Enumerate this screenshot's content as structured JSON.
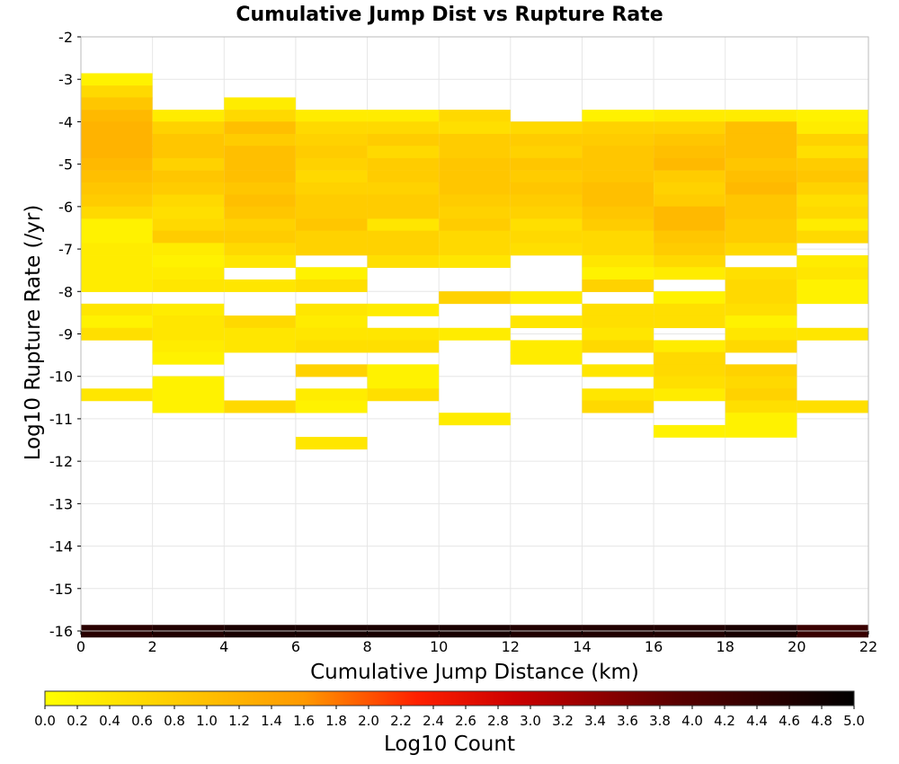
{
  "chart_data": {
    "type": "heatmap",
    "title": "Cumulative Jump Dist vs Rupture Rate",
    "xlabel": "Cumulative Jump Distance (km)",
    "ylabel": "Log10 Rupture Rate (/yr)",
    "xlim": [
      0,
      22
    ],
    "ylim": [
      -16,
      -2
    ],
    "x_ticks": [
      "0",
      "2",
      "4",
      "6",
      "8",
      "10",
      "12",
      "14",
      "16",
      "18",
      "20",
      "22"
    ],
    "y_ticks": [
      "-2",
      "-3",
      "-4",
      "-5",
      "-6",
      "-7",
      "-8",
      "-9",
      "-10",
      "-11",
      "-12",
      "-13",
      "-14",
      "-15",
      "-16"
    ],
    "x_bin_width": 2,
    "y_bin_height": 0.2857,
    "colorbar": {
      "label": "Log10 Count",
      "range": [
        0,
        5
      ],
      "ticks": [
        "0.0",
        "0.2",
        "0.4",
        "0.6",
        "0.8",
        "1.0",
        "1.2",
        "1.4",
        "1.6",
        "1.8",
        "2.0",
        "2.2",
        "2.4",
        "2.6",
        "2.8",
        "3.0",
        "3.2",
        "3.4",
        "3.6",
        "3.8",
        "4.0",
        "4.2",
        "4.4",
        "4.6",
        "4.8",
        "5.0"
      ],
      "colormap": "yellow-orange-red-black"
    },
    "grid": true,
    "columns": [
      {
        "x_start": 0,
        "cells": [
          [
            -3.0,
            0.2
          ],
          [
            -3.29,
            0.6
          ],
          [
            -3.57,
            0.9
          ],
          [
            -3.86,
            1.1
          ],
          [
            -4.14,
            1.2
          ],
          [
            -4.43,
            1.2
          ],
          [
            -4.71,
            1.2
          ],
          [
            -5.0,
            1.1
          ],
          [
            -5.29,
            1.0
          ],
          [
            -5.57,
            0.9
          ],
          [
            -5.86,
            0.8
          ],
          [
            -6.14,
            0.6
          ],
          [
            -6.43,
            0.2
          ],
          [
            -6.71,
            0.2
          ],
          [
            -7.0,
            0.3
          ],
          [
            -7.29,
            0.3
          ],
          [
            -7.57,
            0.3
          ],
          [
            -7.86,
            0.3
          ],
          [
            -8.43,
            0.4
          ],
          [
            -8.71,
            0.2
          ],
          [
            -9.0,
            0.5
          ],
          [
            -10.43,
            0.4
          ],
          [
            -16.0,
            4.5
          ]
        ]
      },
      {
        "x_start": 2,
        "cells": [
          [
            -3.86,
            0.3
          ],
          [
            -4.14,
            0.7
          ],
          [
            -4.43,
            0.9
          ],
          [
            -4.71,
            0.9
          ],
          [
            -5.0,
            0.7
          ],
          [
            -5.29,
            0.9
          ],
          [
            -5.57,
            0.8
          ],
          [
            -5.86,
            0.6
          ],
          [
            -6.14,
            0.5
          ],
          [
            -6.43,
            0.6
          ],
          [
            -6.71,
            0.8
          ],
          [
            -7.0,
            0.3
          ],
          [
            -7.29,
            0.2
          ],
          [
            -7.57,
            0.3
          ],
          [
            -7.86,
            0.4
          ],
          [
            -8.43,
            0.3
          ],
          [
            -8.71,
            0.4
          ],
          [
            -9.0,
            0.4
          ],
          [
            -9.29,
            0.3
          ],
          [
            -9.57,
            0.2
          ],
          [
            -10.14,
            0.2
          ],
          [
            -10.43,
            0.2
          ],
          [
            -10.71,
            0.2
          ],
          [
            -16.0,
            4.6
          ]
        ]
      },
      {
        "x_start": 4,
        "cells": [
          [
            -3.57,
            0.3
          ],
          [
            -3.86,
            0.6
          ],
          [
            -4.14,
            1.0
          ],
          [
            -4.43,
            0.8
          ],
          [
            -4.71,
            1.0
          ],
          [
            -5.0,
            1.0
          ],
          [
            -5.29,
            1.0
          ],
          [
            -5.57,
            0.9
          ],
          [
            -5.86,
            1.0
          ],
          [
            -6.14,
            0.9
          ],
          [
            -6.43,
            0.7
          ],
          [
            -6.71,
            0.8
          ],
          [
            -7.0,
            0.6
          ],
          [
            -7.29,
            0.4
          ],
          [
            -7.86,
            0.4
          ],
          [
            -8.71,
            0.6
          ],
          [
            -9.0,
            0.4
          ],
          [
            -9.29,
            0.4
          ],
          [
            -10.71,
            0.6
          ],
          [
            -16.0,
            4.7
          ]
        ]
      },
      {
        "x_start": 6,
        "cells": [
          [
            -3.86,
            0.3
          ],
          [
            -4.14,
            0.6
          ],
          [
            -4.43,
            0.7
          ],
          [
            -4.71,
            0.8
          ],
          [
            -5.0,
            0.7
          ],
          [
            -5.29,
            0.6
          ],
          [
            -5.57,
            0.7
          ],
          [
            -5.86,
            0.8
          ],
          [
            -6.14,
            0.8
          ],
          [
            -6.43,
            0.9
          ],
          [
            -6.71,
            0.7
          ],
          [
            -7.0,
            0.7
          ],
          [
            -7.57,
            0.2
          ],
          [
            -7.86,
            0.5
          ],
          [
            -8.43,
            0.4
          ],
          [
            -8.71,
            0.3
          ],
          [
            -9.0,
            0.4
          ],
          [
            -9.29,
            0.5
          ],
          [
            -9.86,
            0.7
          ],
          [
            -10.43,
            0.3
          ],
          [
            -10.71,
            0.2
          ],
          [
            -11.57,
            0.4
          ],
          [
            -16.0,
            4.7
          ]
        ]
      },
      {
        "x_start": 8,
        "cells": [
          [
            -3.86,
            0.3
          ],
          [
            -4.14,
            0.6
          ],
          [
            -4.43,
            0.8
          ],
          [
            -4.71,
            0.6
          ],
          [
            -5.0,
            0.8
          ],
          [
            -5.29,
            0.8
          ],
          [
            -5.57,
            0.7
          ],
          [
            -5.86,
            0.8
          ],
          [
            -6.14,
            0.8
          ],
          [
            -6.43,
            0.4
          ],
          [
            -6.71,
            0.7
          ],
          [
            -7.0,
            0.7
          ],
          [
            -7.29,
            0.5
          ],
          [
            -8.43,
            0.3
          ],
          [
            -9.0,
            0.4
          ],
          [
            -9.29,
            0.5
          ],
          [
            -9.86,
            0.2
          ],
          [
            -10.14,
            0.2
          ],
          [
            -10.43,
            0.5
          ],
          [
            -16.0,
            4.7
          ]
        ]
      },
      {
        "x_start": 10,
        "cells": [
          [
            -3.86,
            0.6
          ],
          [
            -4.14,
            0.5
          ],
          [
            -4.43,
            0.8
          ],
          [
            -4.71,
            0.8
          ],
          [
            -5.0,
            0.9
          ],
          [
            -5.29,
            0.9
          ],
          [
            -5.57,
            0.9
          ],
          [
            -5.86,
            0.8
          ],
          [
            -6.14,
            0.7
          ],
          [
            -6.43,
            0.8
          ],
          [
            -6.71,
            0.6
          ],
          [
            -7.0,
            0.6
          ],
          [
            -7.29,
            0.4
          ],
          [
            -8.14,
            0.7
          ],
          [
            -9.0,
            0.3
          ],
          [
            -11.0,
            0.3
          ],
          [
            -16.0,
            4.7
          ]
        ]
      },
      {
        "x_start": 12,
        "cells": [
          [
            -4.14,
            0.6
          ],
          [
            -4.43,
            0.8
          ],
          [
            -4.71,
            0.7
          ],
          [
            -5.0,
            0.9
          ],
          [
            -5.29,
            0.8
          ],
          [
            -5.57,
            0.9
          ],
          [
            -5.86,
            0.8
          ],
          [
            -6.14,
            0.7
          ],
          [
            -6.43,
            0.5
          ],
          [
            -6.71,
            0.6
          ],
          [
            -7.0,
            0.5
          ],
          [
            -8.14,
            0.3
          ],
          [
            -8.71,
            0.4
          ],
          [
            -9.29,
            0.3
          ],
          [
            -9.57,
            0.3
          ],
          [
            -16.0,
            4.6
          ]
        ]
      },
      {
        "x_start": 14,
        "cells": [
          [
            -3.86,
            0.2
          ],
          [
            -4.14,
            0.7
          ],
          [
            -4.43,
            0.8
          ],
          [
            -4.71,
            0.9
          ],
          [
            -5.0,
            0.9
          ],
          [
            -5.29,
            0.9
          ],
          [
            -5.57,
            1.0
          ],
          [
            -5.86,
            1.0
          ],
          [
            -6.14,
            0.9
          ],
          [
            -6.43,
            0.8
          ],
          [
            -6.71,
            0.6
          ],
          [
            -7.0,
            0.6
          ],
          [
            -7.29,
            0.4
          ],
          [
            -7.57,
            0.2
          ],
          [
            -7.86,
            0.7
          ],
          [
            -8.43,
            0.5
          ],
          [
            -8.71,
            0.5
          ],
          [
            -9.0,
            0.4
          ],
          [
            -9.29,
            0.6
          ],
          [
            -9.86,
            0.4
          ],
          [
            -10.43,
            0.4
          ],
          [
            -10.71,
            0.6
          ],
          [
            -16.0,
            4.6
          ]
        ]
      },
      {
        "x_start": 16,
        "cells": [
          [
            -3.86,
            0.3
          ],
          [
            -4.14,
            0.7
          ],
          [
            -4.43,
            0.9
          ],
          [
            -4.71,
            1.0
          ],
          [
            -5.0,
            1.1
          ],
          [
            -5.29,
            0.8
          ],
          [
            -5.57,
            0.7
          ],
          [
            -5.86,
            0.8
          ],
          [
            -6.14,
            1.1
          ],
          [
            -6.43,
            1.1
          ],
          [
            -6.71,
            0.9
          ],
          [
            -7.0,
            0.8
          ],
          [
            -7.29,
            0.6
          ],
          [
            -7.57,
            0.3
          ],
          [
            -8.14,
            0.2
          ],
          [
            -8.43,
            0.5
          ],
          [
            -8.71,
            0.5
          ],
          [
            -9.29,
            0.3
          ],
          [
            -9.57,
            0.6
          ],
          [
            -9.86,
            0.6
          ],
          [
            -10.14,
            0.5
          ],
          [
            -10.43,
            0.3
          ],
          [
            -11.29,
            0.2
          ],
          [
            -16.0,
            4.6
          ]
        ]
      },
      {
        "x_start": 18,
        "cells": [
          [
            -3.86,
            0.3
          ],
          [
            -4.14,
            1.0
          ],
          [
            -4.43,
            1.0
          ],
          [
            -4.71,
            1.0
          ],
          [
            -5.0,
            0.9
          ],
          [
            -5.29,
            1.0
          ],
          [
            -5.57,
            1.1
          ],
          [
            -5.86,
            0.9
          ],
          [
            -6.14,
            0.9
          ],
          [
            -6.43,
            0.8
          ],
          [
            -6.71,
            0.8
          ],
          [
            -7.0,
            0.6
          ],
          [
            -7.57,
            0.5
          ],
          [
            -7.86,
            0.6
          ],
          [
            -8.14,
            0.6
          ],
          [
            -8.43,
            0.5
          ],
          [
            -8.71,
            0.2
          ],
          [
            -9.0,
            0.4
          ],
          [
            -9.29,
            0.6
          ],
          [
            -9.86,
            0.7
          ],
          [
            -10.14,
            0.6
          ],
          [
            -10.43,
            0.7
          ],
          [
            -10.71,
            0.5
          ],
          [
            -11.0,
            0.2
          ],
          [
            -11.29,
            0.2
          ],
          [
            -16.0,
            4.7
          ]
        ]
      },
      {
        "x_start": 20,
        "cells": [
          [
            -3.86,
            0.2
          ],
          [
            -4.14,
            0.3
          ],
          [
            -4.43,
            0.7
          ],
          [
            -4.71,
            0.5
          ],
          [
            -5.0,
            0.8
          ],
          [
            -5.29,
            0.9
          ],
          [
            -5.57,
            0.7
          ],
          [
            -5.86,
            0.5
          ],
          [
            -6.14,
            0.6
          ],
          [
            -6.43,
            0.3
          ],
          [
            -6.71,
            0.6
          ],
          [
            -7.29,
            0.3
          ],
          [
            -7.57,
            0.4
          ],
          [
            -7.86,
            0.2
          ],
          [
            -8.14,
            0.2
          ],
          [
            -9.0,
            0.4
          ],
          [
            -10.71,
            0.5
          ],
          [
            -16.0,
            4.3
          ]
        ]
      }
    ]
  }
}
